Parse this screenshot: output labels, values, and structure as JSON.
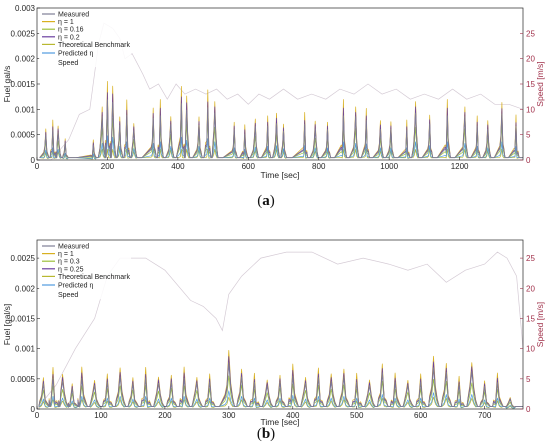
{
  "panels": [
    {
      "caption": {
        "open": "(",
        "letter": "a",
        "close": ")"
      },
      "chart_data": {
        "type": "line",
        "xlabel": "Time [sec]",
        "ylabel_left": "Fuel gal/s",
        "ylabel_right": "Speed [m/s]",
        "xlim": [
          0,
          1380
        ],
        "ylim_left": [
          0,
          0.003
        ],
        "ylim_right": [
          0,
          30
        ],
        "xticks": [
          0,
          200,
          400,
          600,
          800,
          1000,
          1200
        ],
        "yticks_left": [
          0,
          0.0005,
          0.001,
          0.0015,
          0.002,
          0.0025,
          0.003
        ],
        "yticks_left_labels": [
          "0",
          "0.0005",
          "0.001",
          "0.0015",
          "0.002",
          "0.0025",
          "0.003"
        ],
        "yticks_right": [
          0,
          5,
          10,
          15,
          20,
          25
        ],
        "legend_position": "top-left",
        "grid": false,
        "series": [
          {
            "name": "Measured",
            "color": "#7e7e96"
          },
          {
            "name": "η = 1",
            "color": "#d8b020"
          },
          {
            "name": "η = 0.16",
            "color": "#9cc03c"
          },
          {
            "name": "η = 0.2",
            "color": "#6a3fa0"
          },
          {
            "name": "Theoretical Benchmark",
            "color": "#b8b830"
          },
          {
            "name": "Predicted η",
            "color": "#4f9be0"
          },
          {
            "name": "Speed",
            "color": "#d5cbd5"
          }
        ],
        "fuel_peaks": [
          [
            25,
            0.00065
          ],
          [
            45,
            0.0008
          ],
          [
            60,
            0.0007
          ],
          [
            80,
            0.00045
          ],
          [
            160,
            0.0004
          ],
          [
            185,
            0.0011
          ],
          [
            200,
            0.0016
          ],
          [
            215,
            0.0015
          ],
          [
            235,
            0.0009
          ],
          [
            255,
            0.0012
          ],
          [
            275,
            0.00075
          ],
          [
            330,
            0.0011
          ],
          [
            350,
            0.0012
          ],
          [
            380,
            0.0009
          ],
          [
            410,
            0.0015
          ],
          [
            425,
            0.0013
          ],
          [
            460,
            0.0009
          ],
          [
            485,
            0.0014
          ],
          [
            505,
            0.0012
          ],
          [
            560,
            0.0008
          ],
          [
            590,
            0.0007
          ],
          [
            620,
            0.00085
          ],
          [
            655,
            0.0009
          ],
          [
            680,
            0.00095
          ],
          [
            700,
            0.00075
          ],
          [
            760,
            0.00095
          ],
          [
            790,
            0.0008
          ],
          [
            825,
            0.0008
          ],
          [
            870,
            0.0012
          ],
          [
            905,
            0.0011
          ],
          [
            935,
            0.00105
          ],
          [
            975,
            0.0008
          ],
          [
            1005,
            0.0008
          ],
          [
            1050,
            0.0008
          ],
          [
            1075,
            0.0012
          ],
          [
            1115,
            0.00095
          ],
          [
            1165,
            0.0012
          ],
          [
            1215,
            0.0011
          ],
          [
            1250,
            0.0009
          ],
          [
            1280,
            0.0008
          ],
          [
            1320,
            0.0012
          ],
          [
            1360,
            0.0009
          ]
        ],
        "speed_profile": [
          [
            0,
            0
          ],
          [
            40,
            0
          ],
          [
            90,
            4
          ],
          [
            120,
            9
          ],
          [
            150,
            10
          ],
          [
            175,
            23
          ],
          [
            190,
            27
          ],
          [
            215,
            26
          ],
          [
            235,
            24
          ],
          [
            250,
            20
          ],
          [
            270,
            21
          ],
          [
            285,
            19
          ],
          [
            300,
            17
          ],
          [
            320,
            14
          ],
          [
            345,
            15
          ],
          [
            370,
            12
          ],
          [
            395,
            15
          ],
          [
            420,
            13
          ],
          [
            450,
            14
          ],
          [
            480,
            13
          ],
          [
            510,
            14
          ],
          [
            540,
            12
          ],
          [
            570,
            13
          ],
          [
            600,
            11
          ],
          [
            630,
            13
          ],
          [
            660,
            12
          ],
          [
            700,
            14
          ],
          [
            740,
            12
          ],
          [
            780,
            13
          ],
          [
            820,
            12
          ],
          [
            860,
            14
          ],
          [
            900,
            13
          ],
          [
            940,
            15
          ],
          [
            980,
            13
          ],
          [
            1020,
            14
          ],
          [
            1060,
            12
          ],
          [
            1100,
            13
          ],
          [
            1140,
            12
          ],
          [
            1180,
            14
          ],
          [
            1220,
            12
          ],
          [
            1260,
            13
          ],
          [
            1300,
            11
          ],
          [
            1340,
            11
          ],
          [
            1380,
            10
          ]
        ]
      }
    },
    {
      "caption": {
        "open": "(",
        "letter": "b",
        "close": ")"
      },
      "chart_data": {
        "type": "line",
        "xlabel": "Time [sec]",
        "ylabel_left": "Fuel [gal/s]",
        "ylabel_right": "Speed [m/s]",
        "xlim": [
          0,
          760
        ],
        "ylim_left": [
          0,
          0.0028
        ],
        "ylim_right": [
          0,
          28
        ],
        "xticks": [
          0,
          100,
          200,
          300,
          400,
          500,
          600,
          700
        ],
        "yticks_left": [
          0,
          0.0005,
          0.001,
          0.0015,
          0.002,
          0.0025
        ],
        "yticks_left_labels": [
          "0",
          "0.0005",
          "0.001",
          "0.0015",
          "0.002",
          "0.0025"
        ],
        "yticks_right": [
          0,
          5,
          10,
          15,
          20,
          25
        ],
        "legend_position": "top-left",
        "grid": false,
        "series": [
          {
            "name": "Measured",
            "color": "#7e7e96"
          },
          {
            "name": "η = 1",
            "color": "#d8b020"
          },
          {
            "name": "η = 0.3",
            "color": "#9cc03c"
          },
          {
            "name": "η = 0.25",
            "color": "#6a3fa0"
          },
          {
            "name": "Theoretical Benchmark",
            "color": "#b8b830"
          },
          {
            "name": "Predicted η",
            "color": "#4f9be0"
          },
          {
            "name": "Speed",
            "color": "#d5cbd5"
          }
        ],
        "fuel_peaks": [
          [
            10,
            0.00055
          ],
          [
            25,
            0.0007
          ],
          [
            40,
            0.0006
          ],
          [
            55,
            0.00045
          ],
          [
            70,
            0.0007
          ],
          [
            90,
            0.0005
          ],
          [
            110,
            0.0006
          ],
          [
            130,
            0.0007
          ],
          [
            150,
            0.00055
          ],
          [
            170,
            0.0007
          ],
          [
            190,
            0.00055
          ],
          [
            210,
            0.0006
          ],
          [
            230,
            0.0007
          ],
          [
            250,
            0.00055
          ],
          [
            270,
            0.0006
          ],
          [
            300,
            0.001
          ],
          [
            320,
            0.0007
          ],
          [
            340,
            0.0006
          ],
          [
            360,
            0.0005
          ],
          [
            380,
            0.0006
          ],
          [
            400,
            0.00075
          ],
          [
            420,
            0.00055
          ],
          [
            440,
            0.0007
          ],
          [
            460,
            0.0006
          ],
          [
            480,
            0.0007
          ],
          [
            500,
            0.0006
          ],
          [
            520,
            0.0005
          ],
          [
            540,
            0.0008
          ],
          [
            560,
            0.0006
          ],
          [
            580,
            0.0005
          ],
          [
            600,
            0.0006
          ],
          [
            620,
            0.0009
          ],
          [
            640,
            0.0008
          ],
          [
            660,
            0.00055
          ],
          [
            680,
            0.0008
          ],
          [
            700,
            0.0005
          ],
          [
            720,
            0.0006
          ],
          [
            740,
            0.0002
          ]
        ],
        "speed_profile": [
          [
            0,
            0
          ],
          [
            30,
            4
          ],
          [
            60,
            10
          ],
          [
            90,
            15
          ],
          [
            110,
            22
          ],
          [
            130,
            25
          ],
          [
            170,
            25
          ],
          [
            200,
            23
          ],
          [
            240,
            18
          ],
          [
            260,
            17
          ],
          [
            280,
            15
          ],
          [
            290,
            13
          ],
          [
            300,
            19
          ],
          [
            320,
            22
          ],
          [
            350,
            25
          ],
          [
            390,
            26
          ],
          [
            430,
            26
          ],
          [
            470,
            24
          ],
          [
            510,
            25
          ],
          [
            550,
            24
          ],
          [
            580,
            23
          ],
          [
            610,
            24
          ],
          [
            640,
            21
          ],
          [
            670,
            23
          ],
          [
            700,
            24
          ],
          [
            720,
            26
          ],
          [
            735,
            25
          ],
          [
            750,
            22
          ],
          [
            760,
            10
          ]
        ]
      }
    }
  ]
}
